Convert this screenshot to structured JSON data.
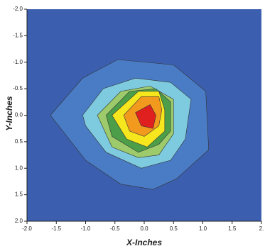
{
  "chart_data": {
    "type": "contour",
    "xlabel": "X-Inches",
    "ylabel": "Y-Inches",
    "background": "#3b5fae",
    "xlim": [
      -2.0,
      2.0
    ],
    "ylim": [
      -2.0,
      2.0
    ],
    "y_inverted": true,
    "xticks": [
      {
        "value": -2.0,
        "label": "-2.0"
      },
      {
        "value": -1.5,
        "label": "-1.5"
      },
      {
        "value": -1.0,
        "label": "-1.0"
      },
      {
        "value": -0.5,
        "label": "-0.5"
      },
      {
        "value": 0.0,
        "label": "0.0"
      },
      {
        "value": 0.5,
        "label": "0.5"
      },
      {
        "value": 1.0,
        "label": "1.0"
      },
      {
        "value": 1.5,
        "label": "1.5"
      },
      {
        "value": 2.0,
        "label": "2."
      }
    ],
    "yticks": [
      {
        "value": -2.0,
        "label": "-2.0"
      },
      {
        "value": -1.5,
        "label": "-1.5"
      },
      {
        "value": -1.0,
        "label": "-1.0"
      },
      {
        "value": -0.5,
        "label": "-0.5"
      },
      {
        "value": 0.0,
        "label": "0.0"
      },
      {
        "value": 0.5,
        "label": "0.5"
      },
      {
        "value": 1.0,
        "label": "1.0"
      },
      {
        "value": 1.5,
        "label": "1.5"
      },
      {
        "value": 2.0,
        "label": "2.0"
      }
    ],
    "series": [
      {
        "color": "#4a7cc6",
        "x": [
          -1.6,
          -1.05,
          -0.45,
          0.5,
          1.05,
          1.1,
          0.55,
          0.15,
          -0.4,
          -1.0
        ],
        "y": [
          0.0,
          -0.7,
          -1.05,
          -0.95,
          -0.45,
          0.65,
          1.2,
          1.4,
          1.3,
          0.85
        ]
      },
      {
        "color": "#7ecbe0",
        "x": [
          -1.05,
          -0.7,
          -0.15,
          0.45,
          0.8,
          0.7,
          0.45,
          -0.05,
          -0.65,
          -1.0
        ],
        "y": [
          0.0,
          -0.5,
          -0.7,
          -0.62,
          -0.3,
          0.45,
          0.85,
          1.0,
          0.7,
          0.2
        ]
      },
      {
        "color": "#9dcb6b",
        "x": [
          -0.8,
          -0.4,
          0.1,
          0.5,
          0.5,
          0.25,
          -0.1,
          -0.55
        ],
        "y": [
          0.0,
          -0.45,
          -0.55,
          -0.3,
          0.35,
          0.75,
          0.8,
          0.6
        ]
      },
      {
        "color": "#4c9e48",
        "x": [
          -0.65,
          -0.25,
          0.2,
          0.45,
          0.45,
          0.25,
          -0.1,
          -0.55
        ],
        "y": [
          0.0,
          -0.45,
          -0.5,
          -0.25,
          0.3,
          0.55,
          0.7,
          0.4
        ]
      },
      {
        "color": "#f5e61e",
        "x": [
          -0.55,
          -0.1,
          0.25,
          0.35,
          0.35,
          0.05,
          -0.3
        ],
        "y": [
          0.0,
          -0.45,
          -0.45,
          -0.1,
          0.3,
          0.6,
          0.45
        ]
      },
      {
        "color": "#f29a1e",
        "x": [
          -0.35,
          -0.05,
          0.25,
          0.3,
          0.25,
          0.0,
          -0.25
        ],
        "y": [
          0.0,
          -0.35,
          -0.35,
          -0.1,
          0.2,
          0.4,
          0.3
        ]
      },
      {
        "color": "#e01f1f",
        "x": [
          -0.15,
          0.1,
          0.2,
          0.15,
          -0.05
        ],
        "y": [
          -0.05,
          -0.2,
          0.0,
          0.25,
          0.2
        ]
      }
    ]
  }
}
